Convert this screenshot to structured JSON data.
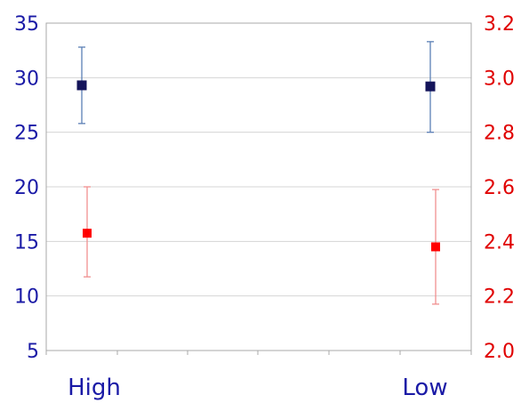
{
  "chart_data": {
    "type": "scatter",
    "title": "",
    "categories": [
      "High",
      "Low"
    ],
    "y_left": {
      "ylim": [
        5,
        35
      ],
      "ticks": [
        5,
        10,
        15,
        20,
        25,
        30,
        35
      ],
      "color": "#1a1aa6"
    },
    "y_right": {
      "ylim": [
        2.0,
        3.2
      ],
      "ticks": [
        "2.0",
        "2.2",
        "2.4",
        "2.6",
        "2.8",
        "3.0",
        "3.2"
      ],
      "color": "#e00000"
    },
    "grid": "horizontal",
    "legend": "none",
    "series": [
      {
        "axis": "left",
        "color": "#14145a",
        "errorbar_color": "#5b7fb5",
        "points": [
          {
            "category": "High",
            "y": 29.3,
            "y_low": 25.8,
            "y_high": 32.8
          },
          {
            "category": "Low",
            "y": 29.2,
            "y_low": 25.0,
            "y_high": 33.3
          }
        ]
      },
      {
        "axis": "right",
        "color": "#ff0000",
        "errorbar_color": "#f09090",
        "points": [
          {
            "category": "High",
            "y": 2.43,
            "y_low": 2.27,
            "y_high": 2.6
          },
          {
            "category": "Low",
            "y": 2.38,
            "y_low": 2.17,
            "y_high": 2.59
          }
        ]
      }
    ]
  }
}
